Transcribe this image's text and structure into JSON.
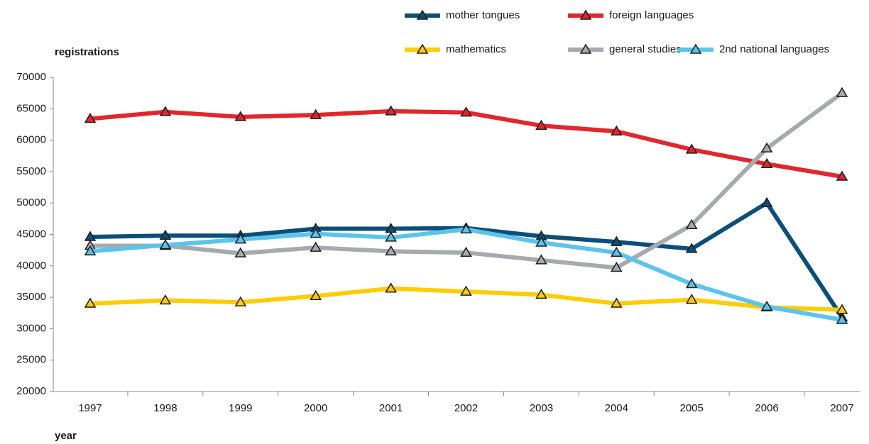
{
  "chart_data": {
    "type": "line",
    "ylabel": "registrations",
    "xlabel": "year",
    "categories": [
      "1997",
      "1998",
      "1999",
      "2000",
      "2001",
      "2002",
      "2003",
      "2004",
      "2005",
      "2006",
      "2007"
    ],
    "series": [
      {
        "name": "mother tongues",
        "color": "#0b4f79",
        "values": [
          44600,
          44800,
          44800,
          45900,
          45900,
          46000,
          44700,
          43800,
          42700,
          50000,
          31800
        ]
      },
      {
        "name": "foreign languages",
        "color": "#e1262d",
        "values": [
          63400,
          64500,
          63700,
          64000,
          64600,
          64400,
          62300,
          61400,
          58500,
          56200,
          54200
        ]
      },
      {
        "name": "mathematics",
        "color": "#ffcc00",
        "values": [
          34000,
          34500,
          34200,
          35200,
          36400,
          35900,
          35400,
          34000,
          34600,
          33400,
          33000
        ]
      },
      {
        "name": "general studies",
        "color": "#a6a9ad",
        "values": [
          43200,
          43200,
          42000,
          42900,
          42300,
          42100,
          40900,
          39700,
          46500,
          58700,
          67500
        ]
      },
      {
        "name": "2nd national languages",
        "color": "#5bc4eb",
        "values": [
          42300,
          43300,
          44200,
          45100,
          44500,
          45800,
          43700,
          42100,
          37100,
          33500,
          31400
        ]
      }
    ],
    "ylim": [
      20000,
      70000
    ],
    "yticks": [
      20000,
      25000,
      30000,
      35000,
      40000,
      45000,
      50000,
      55000,
      60000,
      65000,
      70000
    ],
    "grid": false
  }
}
